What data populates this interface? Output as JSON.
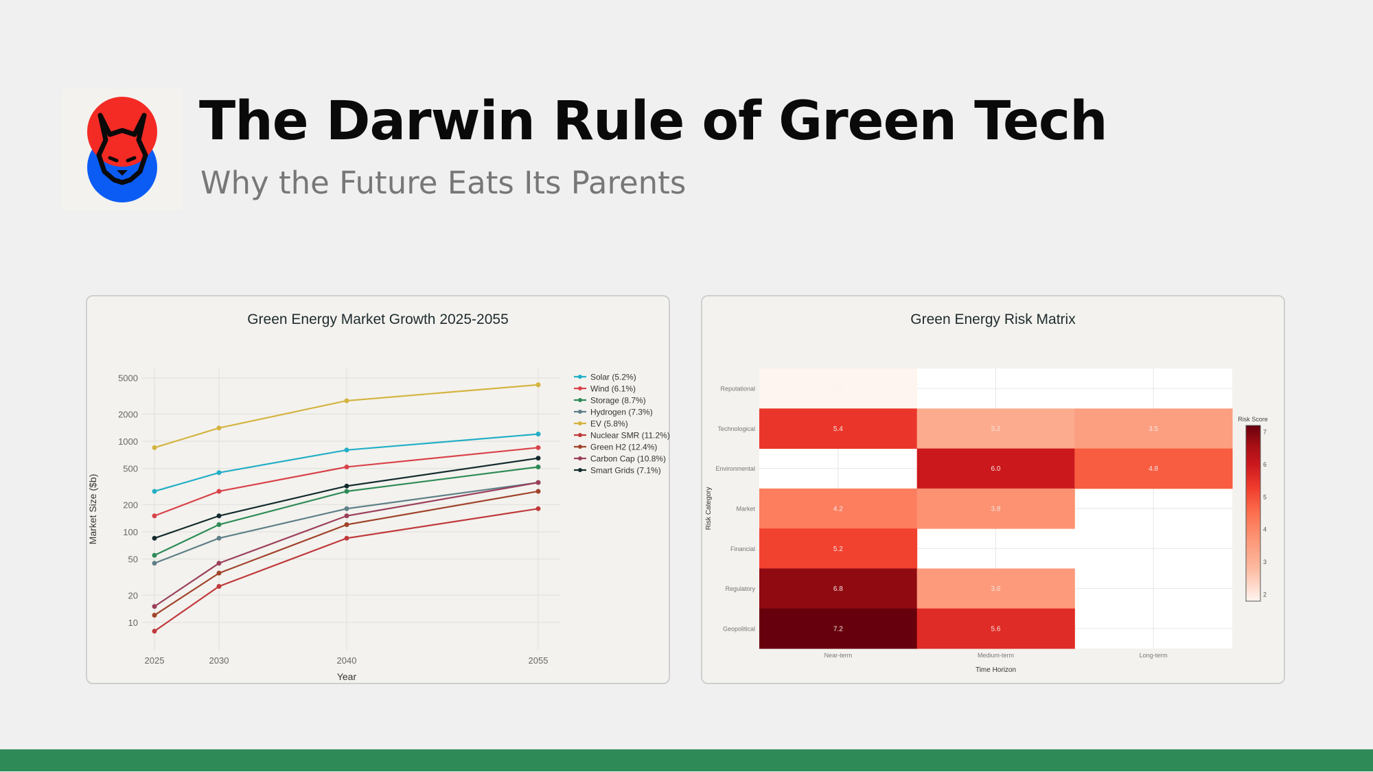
{
  "header": {
    "title": "The Darwin Rule of Green Tech",
    "subtitle": "Why the Future Eats Its Parents",
    "logo": {
      "icon": "lynx-logo-icon",
      "colors": {
        "top": "#f42a24",
        "bottom": "#0b5cf5",
        "line": "#0a0a0a"
      }
    }
  },
  "footer": {
    "bar_color": "#2e8b57"
  },
  "chart_data": [
    {
      "type": "line",
      "title": "Green Energy Market Growth 2025-2055",
      "xlabel": "Year",
      "ylabel": "Market Size ($b)",
      "yscale": "log",
      "x": [
        2025,
        2030,
        2040,
        2055
      ],
      "x_ticks": [
        "2025",
        "2030",
        "2040",
        "2055"
      ],
      "y_ticks": [
        "10",
        "20",
        "50",
        "100",
        "200",
        "500",
        "1000",
        "2000",
        "5000"
      ],
      "grid": true,
      "legend_position": "right",
      "series": [
        {
          "name": "Solar (5.2%)",
          "color": "#22aec6",
          "values": [
            280,
            450,
            800,
            1200
          ]
        },
        {
          "name": "Wind (6.1%)",
          "color": "#d9434a",
          "values": [
            150,
            280,
            520,
            850
          ]
        },
        {
          "name": "Storage (8.7%)",
          "color": "#2e8b57",
          "values": [
            55,
            120,
            280,
            520
          ]
        },
        {
          "name": "Hydrogen (7.3%)",
          "color": "#5f7f88",
          "values": [
            45,
            85,
            180,
            350
          ]
        },
        {
          "name": "EV (5.8%)",
          "color": "#d4b440",
          "values": [
            850,
            1400,
            2800,
            4200
          ]
        },
        {
          "name": "Nuclear SMR (11.2%)",
          "color": "#c0393b",
          "values": [
            8,
            25,
            85,
            180
          ]
        },
        {
          "name": "Green H2 (12.4%)",
          "color": "#a0432a",
          "values": [
            12,
            35,
            120,
            280
          ]
        },
        {
          "name": "Carbon Cap (10.8%)",
          "color": "#9b3f5c",
          "values": [
            15,
            45,
            150,
            350
          ]
        },
        {
          "name": "Smart Grids (7.1%)",
          "color": "#142b2e",
          "values": [
            85,
            150,
            320,
            650
          ]
        }
      ]
    },
    {
      "type": "heatmap",
      "title": "Green Energy Risk Matrix",
      "xlabel": "Time Horizon",
      "ylabel": "Risk Category",
      "x": [
        "Near-term",
        "Medium-term",
        "Long-term"
      ],
      "y": [
        "Reputational",
        "Technological",
        "Environmental",
        "Market",
        "Financial",
        "Regulatory",
        "Geopolitical"
      ],
      "values": [
        [
          1.8,
          null,
          null
        ],
        [
          5.4,
          3.2,
          3.5
        ],
        [
          null,
          6.0,
          4.8
        ],
        [
          4.2,
          3.8,
          null
        ],
        [
          5.2,
          null,
          null
        ],
        [
          6.8,
          3.6,
          null
        ],
        [
          7.2,
          5.6,
          null
        ]
      ],
      "colorbar": {
        "title": "Risk Score",
        "ticks": [
          "2",
          "3",
          "4",
          "5",
          "6",
          "7"
        ],
        "range": [
          1.8,
          7.2
        ],
        "colorscale": "Reds"
      }
    }
  ]
}
